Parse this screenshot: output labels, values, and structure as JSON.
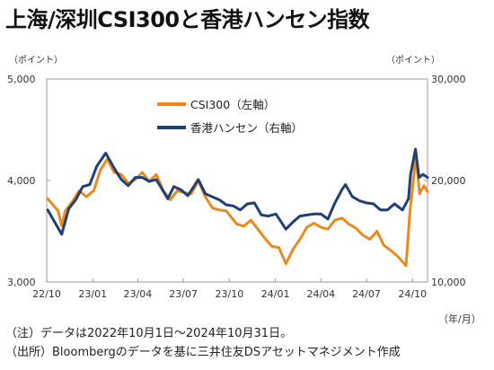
{
  "title": "上海/深圳CSI300と香港ハンセン指数",
  "left_unit": "（ポイント）",
  "right_unit": "（ポイント）",
  "x_unit": "（年/月）",
  "notes": [
    "（注）データは2022年10月1日～2024年10月31日。",
    "（出所）Bloombergのデータを基に三井住友DSアセットマネジメント作成"
  ],
  "chart_data": {
    "type": "line",
    "title": "上海/深圳CSI300と香港ハンセン指数",
    "x_ticks": [
      "22/10",
      "23/01",
      "23/04",
      "23/07",
      "23/10",
      "24/01",
      "24/04",
      "24/07",
      "24/10"
    ],
    "x_range": [
      "2022-10-01",
      "2024-10-31"
    ],
    "y_left": {
      "range": [
        3000,
        5000
      ],
      "ticks": [
        "3,000",
        "4,000",
        "5,000"
      ]
    },
    "y_right": {
      "range": [
        10000,
        30000
      ],
      "ticks": [
        "10,000",
        "20,000",
        "30,000"
      ]
    },
    "legend_position": "top-left",
    "grid": false,
    "series": [
      {
        "name": "CSI300（左軸）",
        "axis": "left",
        "color": "#E88A1E",
        "points": [
          [
            "2022-10-03",
            3820
          ],
          [
            "2022-10-24",
            3700
          ],
          [
            "2022-10-31",
            3550
          ],
          [
            "2022-11-07",
            3700
          ],
          [
            "2022-11-21",
            3790
          ],
          [
            "2022-12-05",
            3900
          ],
          [
            "2022-12-19",
            3840
          ],
          [
            "2023-01-03",
            3900
          ],
          [
            "2023-01-16",
            4100
          ],
          [
            "2023-01-30",
            4210
          ],
          [
            "2023-02-13",
            4080
          ],
          [
            "2023-02-27",
            4060
          ],
          [
            "2023-03-13",
            3970
          ],
          [
            "2023-03-27",
            4010
          ],
          [
            "2023-04-10",
            4080
          ],
          [
            "2023-04-24",
            3990
          ],
          [
            "2023-05-08",
            4060
          ],
          [
            "2023-05-22",
            3900
          ],
          [
            "2023-06-05",
            3810
          ],
          [
            "2023-06-19",
            3900
          ],
          [
            "2023-07-03",
            3880
          ],
          [
            "2023-07-17",
            3870
          ],
          [
            "2023-07-31",
            4000
          ],
          [
            "2023-08-14",
            3840
          ],
          [
            "2023-08-28",
            3730
          ],
          [
            "2023-09-11",
            3710
          ],
          [
            "2023-09-25",
            3700
          ],
          [
            "2023-10-16",
            3570
          ],
          [
            "2023-10-30",
            3550
          ],
          [
            "2023-11-13",
            3610
          ],
          [
            "2023-11-27",
            3520
          ],
          [
            "2023-12-11",
            3430
          ],
          [
            "2023-12-25",
            3350
          ],
          [
            "2024-01-08",
            3340
          ],
          [
            "2024-01-22",
            3180
          ],
          [
            "2024-02-05",
            3320
          ],
          [
            "2024-02-19",
            3420
          ],
          [
            "2024-03-04",
            3540
          ],
          [
            "2024-03-18",
            3580
          ],
          [
            "2024-04-01",
            3540
          ],
          [
            "2024-04-15",
            3520
          ],
          [
            "2024-04-29",
            3610
          ],
          [
            "2024-05-13",
            3630
          ],
          [
            "2024-05-27",
            3570
          ],
          [
            "2024-06-10",
            3530
          ],
          [
            "2024-06-24",
            3460
          ],
          [
            "2024-07-08",
            3420
          ],
          [
            "2024-07-22",
            3500
          ],
          [
            "2024-08-05",
            3360
          ],
          [
            "2024-08-19",
            3310
          ],
          [
            "2024-09-02",
            3250
          ],
          [
            "2024-09-18",
            3160
          ],
          [
            "2024-09-26",
            3700
          ],
          [
            "2024-10-08",
            4250
          ],
          [
            "2024-10-15",
            3870
          ],
          [
            "2024-10-24",
            3950
          ],
          [
            "2024-10-31",
            3890
          ]
        ]
      },
      {
        "name": "香港ハンセン（右軸）",
        "axis": "right",
        "color": "#1F3F77",
        "points": [
          [
            "2022-10-03",
            17100
          ],
          [
            "2022-10-24",
            15300
          ],
          [
            "2022-10-31",
            14700
          ],
          [
            "2022-11-14",
            17200
          ],
          [
            "2022-11-28",
            18100
          ],
          [
            "2022-12-12",
            19400
          ],
          [
            "2022-12-26",
            19600
          ],
          [
            "2023-01-09",
            21400
          ],
          [
            "2023-01-27",
            22700
          ],
          [
            "2023-02-13",
            21200
          ],
          [
            "2023-02-27",
            20100
          ],
          [
            "2023-03-13",
            19500
          ],
          [
            "2023-03-27",
            20300
          ],
          [
            "2023-04-10",
            20300
          ],
          [
            "2023-04-24",
            19900
          ],
          [
            "2023-05-08",
            20100
          ],
          [
            "2023-05-31",
            18200
          ],
          [
            "2023-06-12",
            19400
          ],
          [
            "2023-06-26",
            19100
          ],
          [
            "2023-07-10",
            18500
          ],
          [
            "2023-07-31",
            20100
          ],
          [
            "2023-08-14",
            18700
          ],
          [
            "2023-08-28",
            18400
          ],
          [
            "2023-09-11",
            18100
          ],
          [
            "2023-09-25",
            17600
          ],
          [
            "2023-10-09",
            17500
          ],
          [
            "2023-10-23",
            17100
          ],
          [
            "2023-11-06",
            17700
          ],
          [
            "2023-11-20",
            17800
          ],
          [
            "2023-12-04",
            16600
          ],
          [
            "2023-12-18",
            16500
          ],
          [
            "2024-01-02",
            16700
          ],
          [
            "2024-01-22",
            15200
          ],
          [
            "2024-02-05",
            15900
          ],
          [
            "2024-02-19",
            16500
          ],
          [
            "2024-03-04",
            16600
          ],
          [
            "2024-03-18",
            16700
          ],
          [
            "2024-04-01",
            16700
          ],
          [
            "2024-04-15",
            16200
          ],
          [
            "2024-04-29",
            17800
          ],
          [
            "2024-05-13",
            19100
          ],
          [
            "2024-05-20",
            19600
          ],
          [
            "2024-06-03",
            18400
          ],
          [
            "2024-06-17",
            18000
          ],
          [
            "2024-07-01",
            17800
          ],
          [
            "2024-07-15",
            17700
          ],
          [
            "2024-07-29",
            17100
          ],
          [
            "2024-08-12",
            17100
          ],
          [
            "2024-08-26",
            17700
          ],
          [
            "2024-09-11",
            17100
          ],
          [
            "2024-09-23",
            18200
          ],
          [
            "2024-09-27",
            20600
          ],
          [
            "2024-10-07",
            23100
          ],
          [
            "2024-10-14",
            20300
          ],
          [
            "2024-10-22",
            20600
          ],
          [
            "2024-10-31",
            20300
          ]
        ]
      }
    ]
  }
}
